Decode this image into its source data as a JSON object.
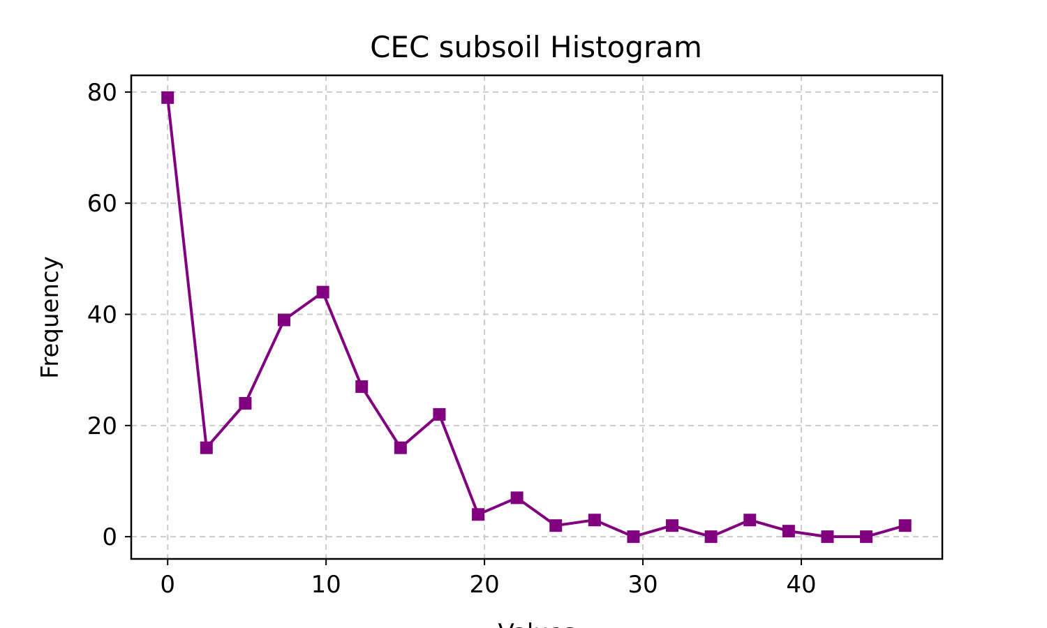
{
  "chart_data": {
    "type": "line",
    "title": "CEC subsoil Histogram",
    "xlabel": "Values",
    "ylabel": "Frequency",
    "xlim": [
      -2.3,
      48.9
    ],
    "ylim": [
      -4,
      83
    ],
    "xticks": [
      0,
      10,
      20,
      30,
      40
    ],
    "yticks": [
      0,
      20,
      40,
      60,
      80
    ],
    "grid": true,
    "series": [
      {
        "color": "#800080",
        "marker": "square",
        "x": [
          0.0,
          2.45,
          4.9,
          7.35,
          9.8,
          12.25,
          14.7,
          17.15,
          19.6,
          22.05,
          24.5,
          26.95,
          29.4,
          31.85,
          34.3,
          36.75,
          39.2,
          41.65,
          44.1,
          46.55
        ],
        "y": [
          79,
          16,
          24,
          39,
          44,
          27,
          16,
          22,
          4,
          7,
          2,
          3,
          0,
          2,
          0,
          3,
          1,
          0,
          0,
          2
        ]
      }
    ]
  }
}
